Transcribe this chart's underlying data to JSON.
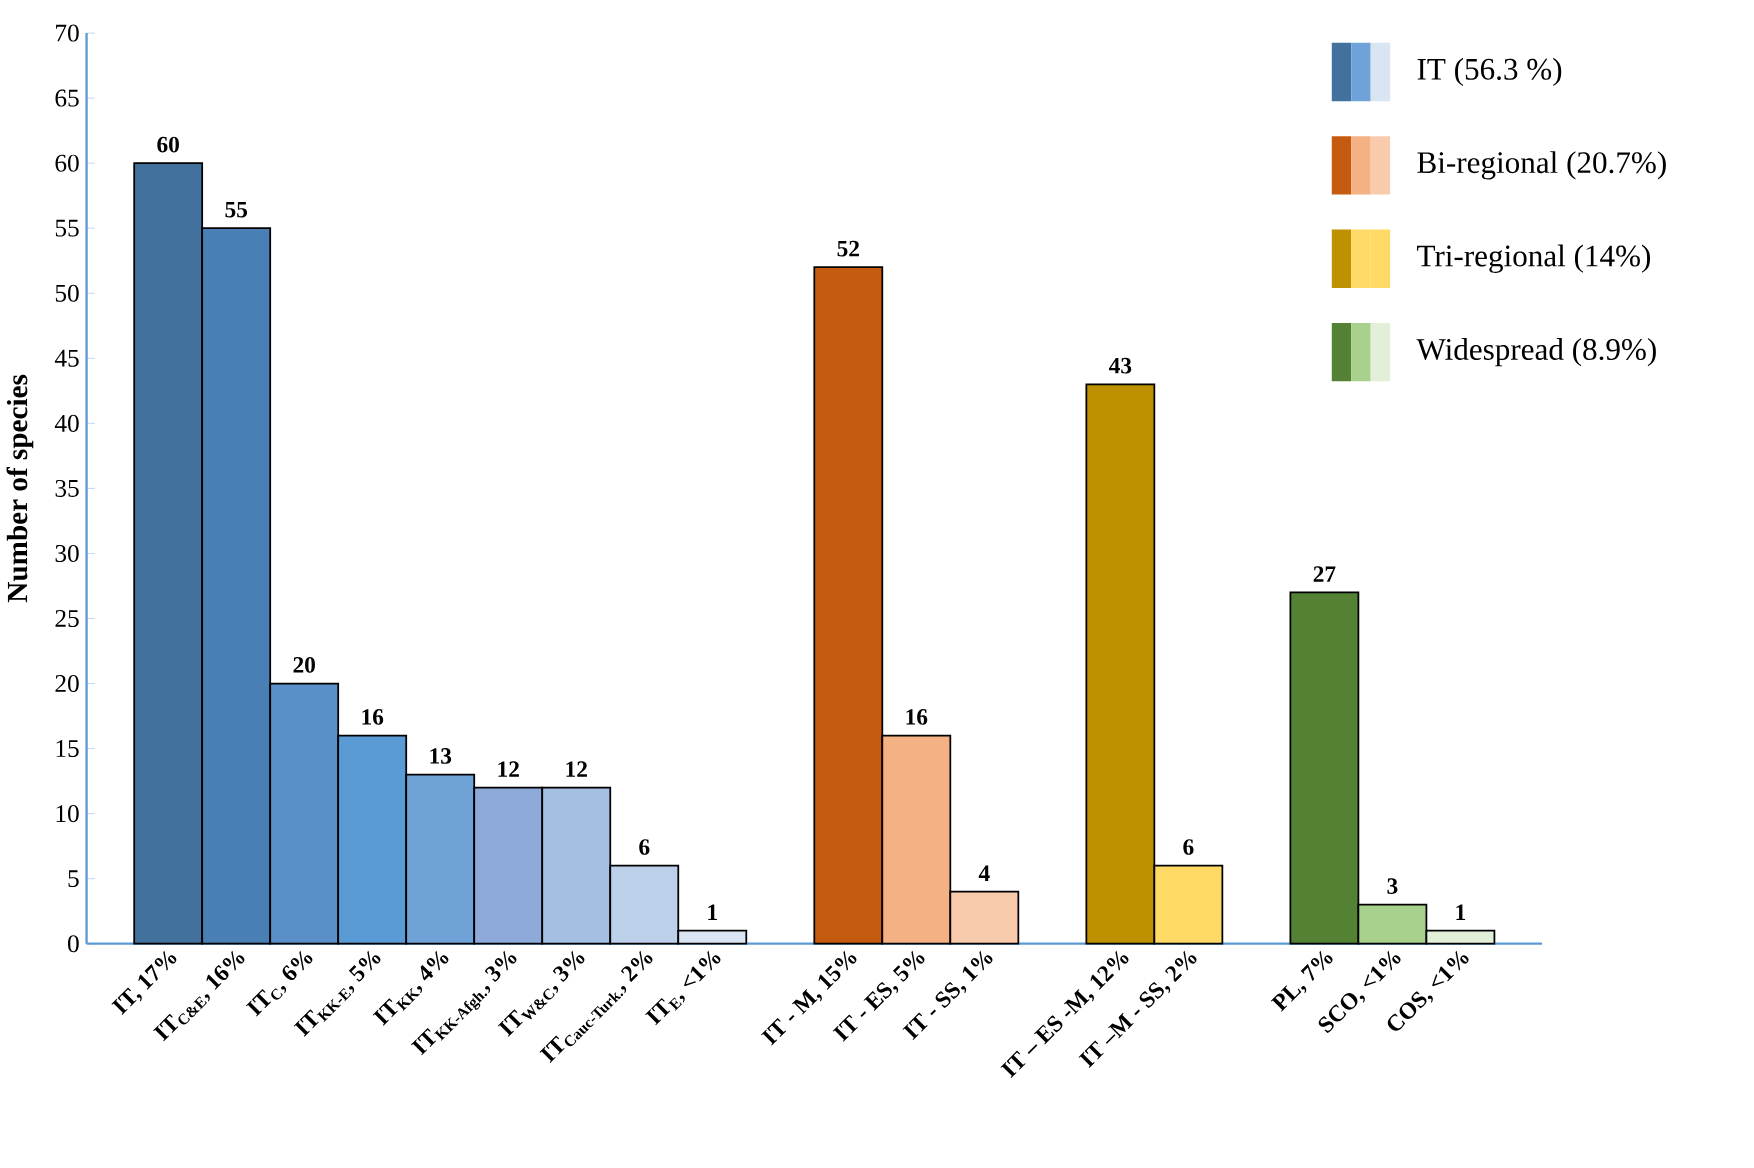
{
  "chart_data": {
    "type": "bar",
    "ylabel": "Number of species",
    "categories": [
      "IT, 17%",
      "IT$_{C&E}$, 16%",
      "IT$_{C}$, 6%",
      "IT$_{KK-E}$, 5%",
      "IT$_{KK}$, 4%",
      "IT$_{KK-Afgh.}$, 3%",
      "IT$_{W&C}$, 3%",
      "IT$_{Cauc-Turk.}$, 2%",
      "IT$_{E}$, <1%",
      null,
      "IT - M, 15%",
      "IT - ES, 5%",
      "IT - SS, 1%",
      null,
      "IT – ES -M, 12%",
      "IT –M - SS, 2%",
      null,
      "PL, 7%",
      "SCO, <1%",
      "COS, <1%"
    ],
    "series": [
      {
        "name": "IT (56.3 %)",
        "values": [
          60,
          55,
          20,
          16,
          13,
          12,
          12,
          6,
          1,
          null,
          null,
          null,
          null,
          null,
          null,
          null,
          null,
          null,
          null,
          null
        ],
        "value_labels": [
          "60",
          "55",
          "20",
          "16",
          "13",
          "12",
          "12",
          "6",
          "1",
          null,
          null,
          null,
          null,
          null,
          null,
          null,
          null,
          null,
          null,
          null
        ],
        "colors": [
          "#41719c",
          "#4a7fb5",
          "#5b8fc7",
          "#5b9bd5",
          "#6fa3d8",
          "#8eaadb",
          "#a5bfe3",
          "#bdd0ea",
          "#dae5f3",
          null,
          null,
          null,
          null,
          null,
          null,
          null,
          null,
          null,
          null,
          null
        ]
      },
      {
        "name": "Bi-regional (20.7%)",
        "values": [
          null,
          null,
          null,
          null,
          null,
          null,
          null,
          null,
          null,
          null,
          52,
          16,
          4,
          null,
          null,
          null,
          null,
          null,
          null,
          null
        ],
        "value_labels": [
          null,
          null,
          null,
          null,
          null,
          null,
          null,
          null,
          null,
          null,
          "52",
          "16",
          "4",
          null,
          null,
          null,
          null,
          null,
          null,
          null
        ],
        "colors": [
          null,
          null,
          null,
          null,
          null,
          null,
          null,
          null,
          null,
          null,
          "#c55a11",
          "#f4b183",
          "#f8cbad",
          null,
          null,
          null,
          null,
          null,
          null,
          null
        ]
      },
      {
        "name": "Tri-regional (14%)",
        "values": [
          null,
          null,
          null,
          null,
          null,
          null,
          null,
          null,
          null,
          null,
          null,
          null,
          null,
          null,
          43,
          6,
          null,
          null,
          null,
          null
        ],
        "value_labels": [
          null,
          null,
          null,
          null,
          null,
          null,
          null,
          null,
          null,
          null,
          null,
          null,
          null,
          null,
          "43",
          "6",
          null,
          null,
          null,
          null
        ],
        "colors": [
          null,
          null,
          null,
          null,
          null,
          null,
          null,
          null,
          null,
          null,
          null,
          null,
          null,
          null,
          "#bf9000",
          "#ffd966",
          null,
          null,
          null,
          null
        ]
      },
      {
        "name": "Widespread (8.9%)",
        "values": [
          null,
          null,
          null,
          null,
          null,
          null,
          null,
          null,
          null,
          null,
          null,
          null,
          null,
          null,
          null,
          null,
          null,
          27,
          3,
          1
        ],
        "value_labels": [
          null,
          null,
          null,
          null,
          null,
          null,
          null,
          null,
          null,
          null,
          null,
          null,
          null,
          null,
          null,
          null,
          null,
          "27",
          "3",
          "1"
        ],
        "colors": [
          null,
          null,
          null,
          null,
          null,
          null,
          null,
          null,
          null,
          null,
          null,
          null,
          null,
          null,
          null,
          null,
          null,
          "#548235",
          "#a9d18e",
          "#e2f0d9"
        ]
      }
    ],
    "ylim": [
      0,
      70
    ],
    "yticks": [
      0,
      5,
      10,
      15,
      20,
      25,
      30,
      35,
      40,
      45,
      50,
      55,
      60,
      65,
      70
    ],
    "legend": "top right"
  }
}
